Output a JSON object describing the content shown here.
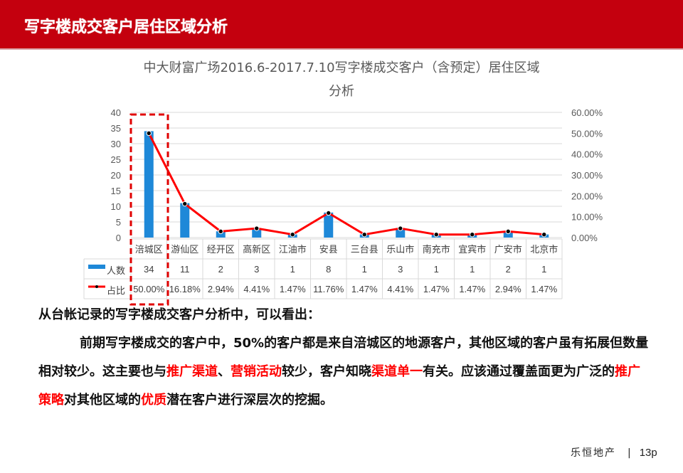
{
  "header": {
    "title": "写字楼成交客户居住区域分析",
    "color": "#c4000e"
  },
  "chart_title": {
    "line1": "中大财富广场2016.6-2017.7.10写字楼成交客户（含预定）居住区域",
    "line2": "分析"
  },
  "chart_data": {
    "type": "bar+line",
    "title": "中大财富广场2016.6-2017.7.10写字楼成交客户（含预定）居住区域分析",
    "categories": [
      "涪城区",
      "游仙区",
      "经开区",
      "高新区",
      "江油市",
      "安县",
      "三台县",
      "乐山市",
      "南充市",
      "宜宾市",
      "广安市",
      "北京市"
    ],
    "series": [
      {
        "name": "人数",
        "type": "bar",
        "axis": "left",
        "color": "#1e88d8",
        "values": [
          34,
          11,
          2,
          3,
          1,
          8,
          1,
          3,
          1,
          1,
          2,
          1
        ]
      },
      {
        "name": "占比",
        "type": "line",
        "axis": "right",
        "color": "#ff0000",
        "marker_color": "#000000",
        "values": [
          50.0,
          16.18,
          2.94,
          4.41,
          1.47,
          11.76,
          1.47,
          4.41,
          1.47,
          1.47,
          2.94,
          1.47
        ],
        "labels": [
          "50.00%",
          "16.18%",
          "2.94%",
          "4.41%",
          "1.47%",
          "11.76%",
          "1.47%",
          "4.41%",
          "1.47%",
          "1.47%",
          "2.94%",
          "1.47%"
        ]
      }
    ],
    "y_left": {
      "ticks": [
        "0",
        "5",
        "10",
        "15",
        "20",
        "25",
        "30",
        "35",
        "40"
      ],
      "ylim": [
        0,
        40
      ]
    },
    "y_right": {
      "ticks": [
        "0.00%",
        "10.00%",
        "20.00%",
        "30.00%",
        "40.00%",
        "50.00%",
        "60.00%"
      ],
      "ylim": [
        0,
        60
      ]
    },
    "grid": true,
    "legend_position": "data-table",
    "data_table": true,
    "highlight": {
      "category": "涪城区",
      "style": "red dashed box",
      "color": "#e00000"
    }
  },
  "table": {
    "legend_people": "人数",
    "legend_ratio": "占比"
  },
  "body": {
    "line1": "从台帐记录的写字楼成交客户分析中，可以看出：",
    "seg": [
      {
        "text": "前期写字楼成交的客户中，50%的客户都是来自涪城区的地源客户，其他区域的客户虽有拓展但数量相对较少。这主要也与",
        "red": false
      },
      {
        "text": "推广渠道",
        "red": true
      },
      {
        "text": "、",
        "red": false
      },
      {
        "text": "营销活动",
        "red": true
      },
      {
        "text": "较少，客户知晓",
        "red": false
      },
      {
        "text": "渠道单一",
        "red": true
      },
      {
        "text": "有关。应该通过覆盖面更为广泛的",
        "red": false
      },
      {
        "text": "推广策略",
        "red": true
      },
      {
        "text": "对其他区域的",
        "red": false
      },
      {
        "text": "优质",
        "red": true
      },
      {
        "text": "潜在客户进行深层次的挖掘。",
        "red": false
      }
    ]
  },
  "footer": {
    "brand": "乐恒地产",
    "separator": "|",
    "page": "13p"
  }
}
